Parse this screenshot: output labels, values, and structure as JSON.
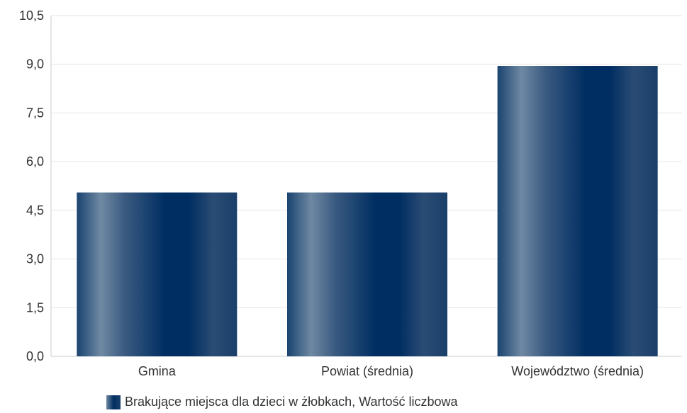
{
  "chart_data": {
    "type": "bar",
    "categories": [
      "Gmina",
      "Powiat (średnia)",
      "Województwo (średnia)"
    ],
    "series": [
      {
        "name": "Brakujące miejsca dla dzieci w żłobkach, Wartość liczbowa",
        "values": [
          5.05,
          5.05,
          8.95
        ]
      }
    ],
    "y_ticks": [
      "0,0",
      "1,5",
      "3,0",
      "4,5",
      "6,0",
      "7,5",
      "9,0",
      "10,5"
    ],
    "ylim": [
      0,
      10.5
    ],
    "ytick_step": 1.5,
    "grid": true,
    "legend_position": "bottom",
    "colors": {
      "bar_dark": "#002e62",
      "bar_light": "#6f89a3",
      "grid": "#e6e6e6",
      "axis": "#cccccc",
      "text": "#333333"
    }
  }
}
